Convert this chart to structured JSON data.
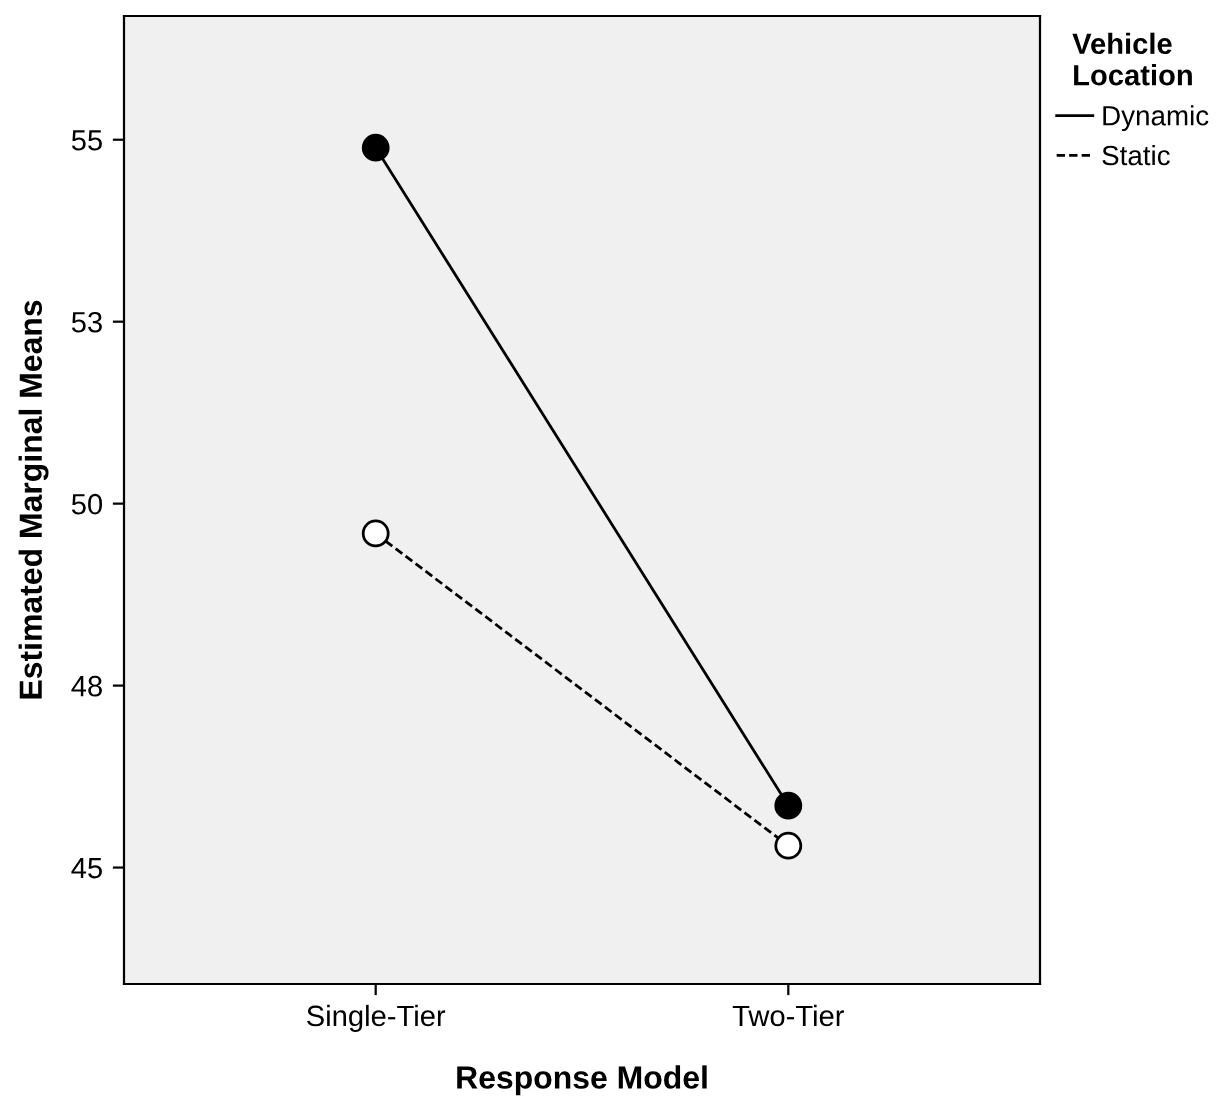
{
  "chart_data": {
    "type": "line",
    "xlabel": "Response Model",
    "ylabel": "Estimated Marginal Means",
    "legend_title": "Vehicle\nLocation",
    "categories": [
      "Single-Tier",
      "Two-Tier"
    ],
    "series": [
      {
        "name": "Dynamic",
        "color": "#000000",
        "values": [
          54.89,
          45.85
        ],
        "line_style": "solid"
      },
      {
        "name": "Static",
        "color": "#ffffff",
        "values": [
          49.59,
          45.3
        ],
        "line_style": "dashed"
      }
    ],
    "ylim": [
      43.4,
      56.7
    ],
    "yticks": [
      45,
      {
        "value": 47.5,
        "label": "48"
      },
      50,
      {
        "value": 52.5,
        "label": "53"
      },
      55
    ],
    "marker": "circle",
    "legend": "right",
    "grid": false
  }
}
